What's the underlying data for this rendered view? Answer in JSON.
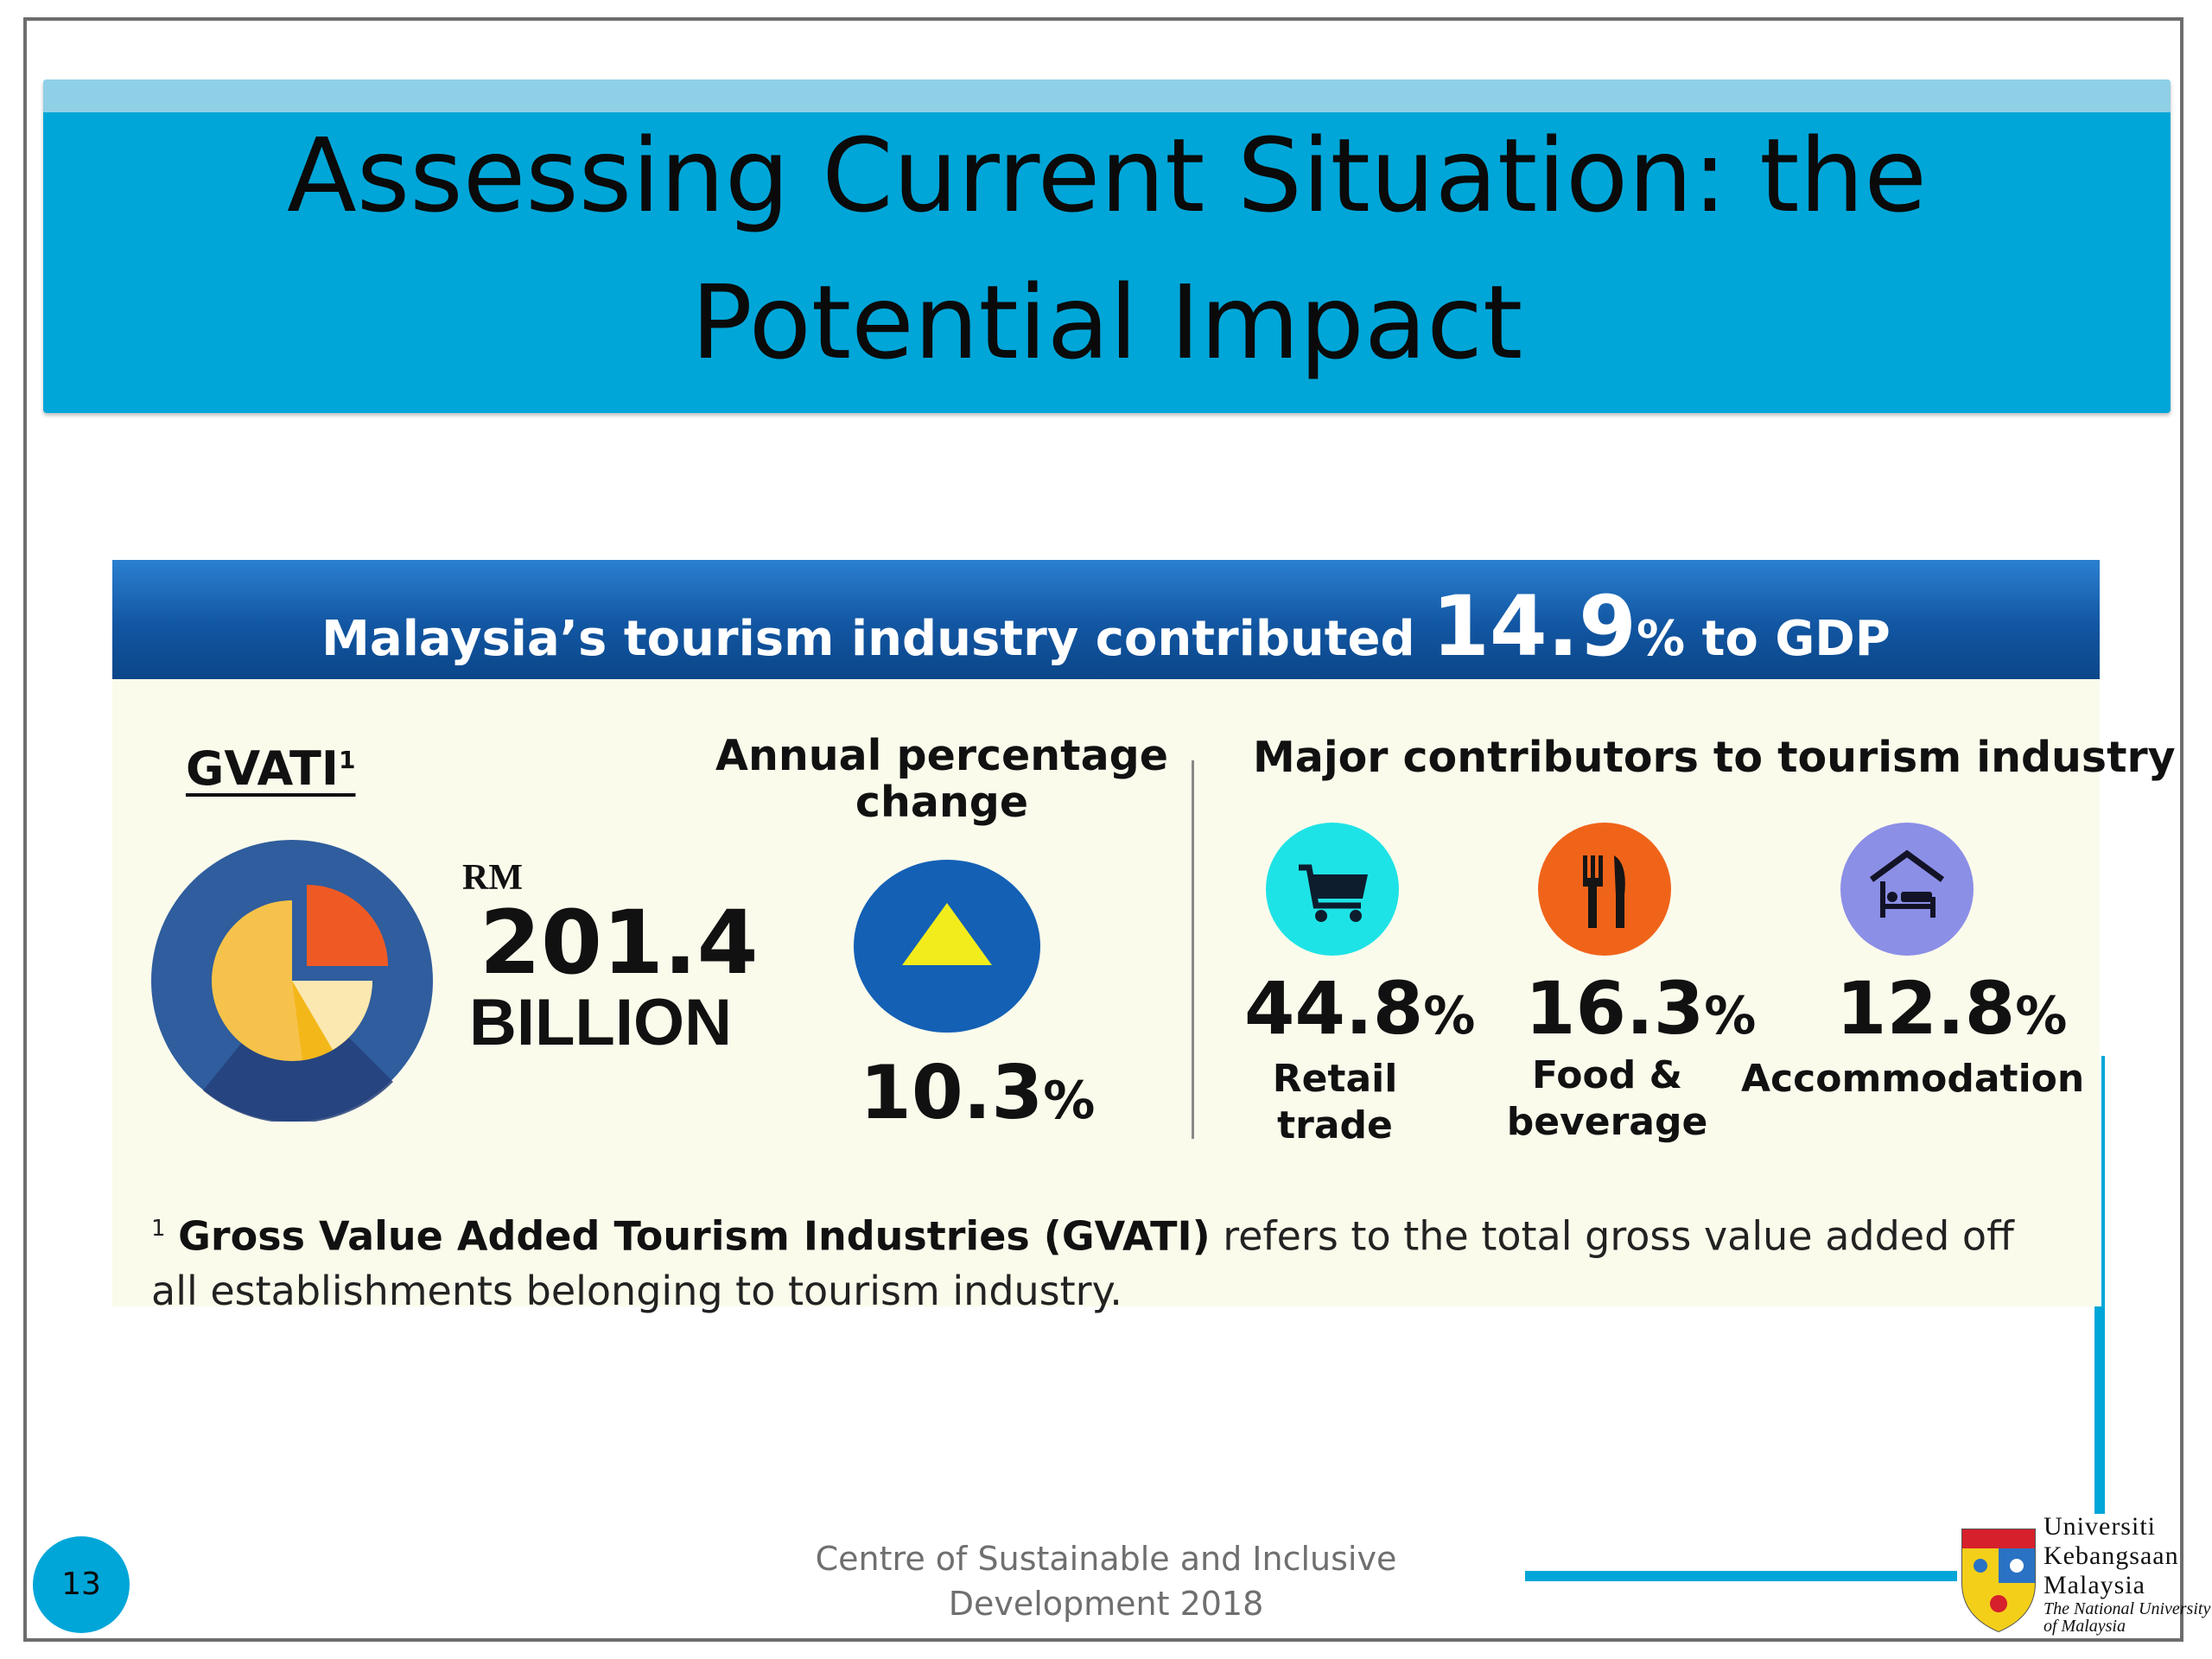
{
  "slide": {
    "title_line1": "Assessing Current Situation: the",
    "title_line2": "Potential Impact",
    "page_number": "13",
    "footer_line1": "Centre of Sustainable and Inclusive",
    "footer_line2": "Development 2018"
  },
  "infographic": {
    "headline_prefix": "Malaysia’s tourism industry contributed ",
    "headline_value": "14.9",
    "headline_suffix": "% to GDP",
    "gvati_label": "GVATI",
    "gvati_sup": "1",
    "rm_label": "RM",
    "gvati_value": "201.4",
    "gvati_unit": "BILLION",
    "annual_label": "Annual percentage change",
    "annual_value": "10.3",
    "annual_pct": "%",
    "major_label": "Major contributors to tourism industry",
    "contributors": [
      {
        "value": "44.8",
        "pct": "%",
        "label_line1": "Retail",
        "label_line2": "trade",
        "icon": "shopping-cart-icon",
        "color": "#1ee3e6"
      },
      {
        "value": "16.3",
        "pct": "%",
        "label_line1": "Food &",
        "label_line2": "beverage",
        "icon": "fork-knife-icon",
        "color": "#f0641a"
      },
      {
        "value": "12.8",
        "pct": "%",
        "label_line1": "Accommodation",
        "label_line2": "",
        "icon": "bed-house-icon",
        "color": "#8b8fe6"
      }
    ],
    "footnote_marker": "1",
    "footnote_bold": "Gross Value Added Tourism Industries (GVATI)",
    "footnote_rest": " refers to the total gross value added off all establishments belonging to tourism industry."
  },
  "logo": {
    "line1": "Universiti",
    "line2": "Kebangsaan",
    "line3": "Malaysia",
    "line4": "The National University",
    "line5": "of Malaysia"
  },
  "colors": {
    "accent": "#00a6d8",
    "header_blue": "#1256a2",
    "panel_bg": "#fbfbec"
  }
}
